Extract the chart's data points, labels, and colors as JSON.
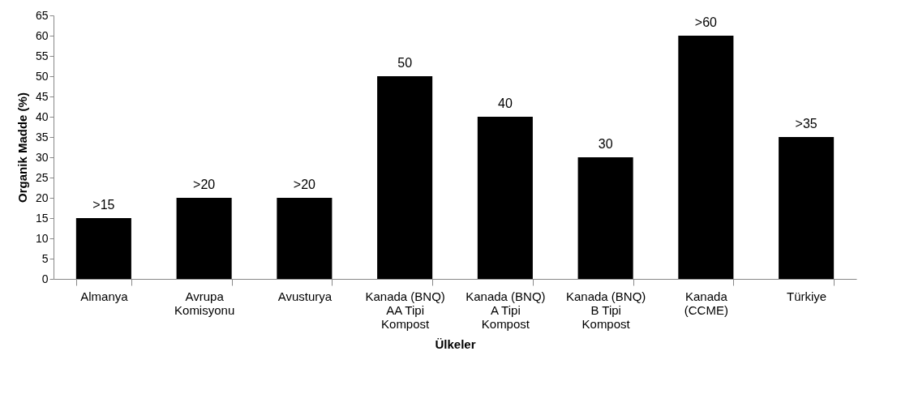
{
  "chart_data": {
    "type": "bar",
    "xlabel": "Ülkeler",
    "ylabel": "Organik Madde (%)",
    "categories": [
      "Almanya",
      "Avrupa Komisyonu",
      "Avusturya",
      "Kanada (BNQ) AA Tipi Kompost",
      "Kanada (BNQ) A Tipi Kompost",
      "Kanada (BNQ) B Tipi Kompost",
      "Kanada (CCME)",
      "Türkiye"
    ],
    "values": [
      15,
      20,
      20,
      50,
      40,
      30,
      60,
      35
    ],
    "value_labels": [
      ">15",
      ">20",
      ">20",
      "50",
      "40",
      "30",
      ">60",
      ">35"
    ],
    "color": "#000000",
    "ylim": [
      0,
      65
    ],
    "yticks": [
      0,
      5,
      10,
      15,
      20,
      25,
      30,
      35,
      40,
      45,
      50,
      55,
      60,
      65
    ],
    "grid": false
  }
}
